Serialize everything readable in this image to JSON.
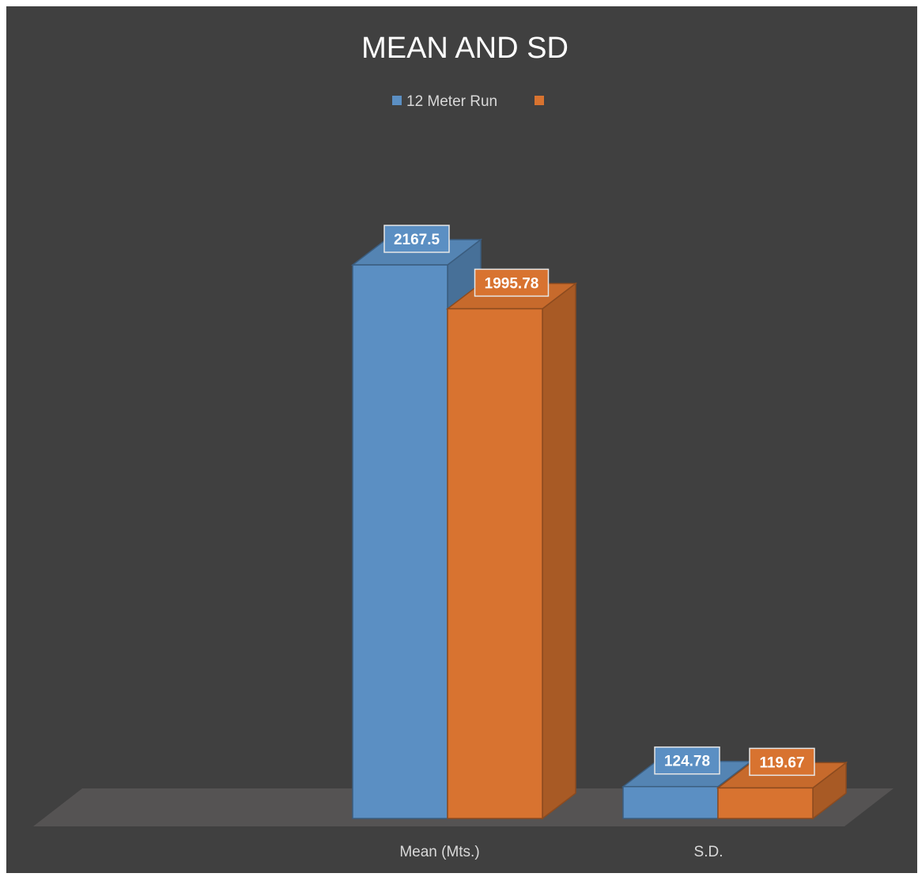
{
  "chart_data": {
    "type": "bar",
    "title": "MEAN AND SD",
    "categories": [
      "",
      "Mean (Mts.)",
      "S.D."
    ],
    "series": [
      {
        "name": "12 Meter Run",
        "values": [
          null,
          2167.5,
          124.78
        ],
        "labels": [
          "",
          "2167.5",
          "124.78"
        ],
        "color": "#5b8fc3"
      },
      {
        "name": "",
        "values": [
          null,
          1995.78,
          119.67
        ],
        "labels": [
          "",
          "1995.78",
          "119.67"
        ],
        "color": "#d87330"
      }
    ],
    "xlabel": "",
    "ylabel": "",
    "ylim": [
      0,
      2200
    ],
    "grid": false,
    "legend": "top",
    "background_color": "#404040",
    "floor_color": "#555353"
  }
}
